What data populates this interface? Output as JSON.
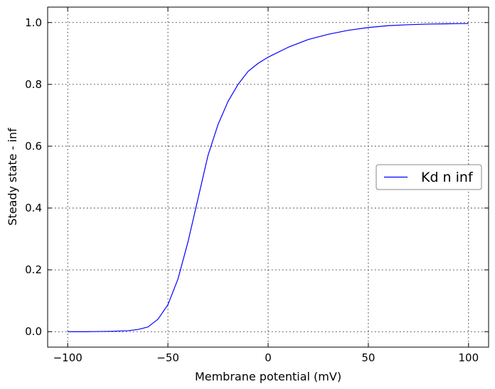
{
  "chart_data": {
    "type": "line",
    "title": "",
    "xlabel": "Membrane potential (mV)",
    "ylabel": "Steady state - inf",
    "xlim": [
      -110,
      110
    ],
    "ylim": [
      -0.05,
      1.05
    ],
    "xticks": [
      -100,
      -50,
      0,
      50,
      100
    ],
    "xtick_labels": [
      "−100",
      "−50",
      "0",
      "50",
      "100"
    ],
    "yticks": [
      0.0,
      0.2,
      0.4,
      0.6,
      0.8,
      1.0
    ],
    "ytick_labels": [
      "0.0",
      "0.2",
      "0.4",
      "0.6",
      "0.8",
      "1.0"
    ],
    "grid": true,
    "legend_position": "center-right",
    "series": [
      {
        "name": "Kd n inf",
        "color": "#0000ff",
        "x": [
          -100,
          -90,
          -80,
          -70,
          -65,
          -60,
          -55,
          -50,
          -45,
          -40,
          -35,
          -30,
          -25,
          -20,
          -15,
          -10,
          -5,
          0,
          10,
          20,
          30,
          40,
          50,
          60,
          70,
          80,
          90,
          100
        ],
        "y": [
          0.0,
          0.0,
          0.001,
          0.003,
          0.007,
          0.015,
          0.04,
          0.087,
          0.17,
          0.29,
          0.43,
          0.57,
          0.67,
          0.745,
          0.8,
          0.842,
          0.868,
          0.888,
          0.92,
          0.945,
          0.962,
          0.975,
          0.984,
          0.99,
          0.993,
          0.995,
          0.996,
          0.997
        ]
      }
    ]
  }
}
